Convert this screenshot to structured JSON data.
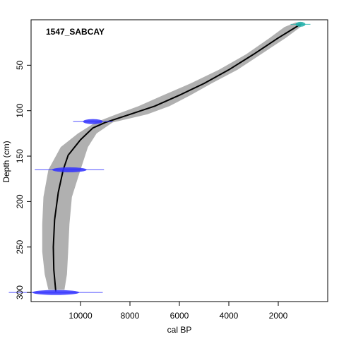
{
  "chart_data": {
    "type": "line",
    "title": "1547_SABCAY",
    "xlabel": "cal BP",
    "ylabel": "Depth (cm)",
    "xlim": [
      12000,
      0
    ],
    "ylim": [
      310,
      0
    ],
    "x_reversed": true,
    "y_reversed": true,
    "x_ticks": [
      10000,
      8000,
      6000,
      4000,
      2000
    ],
    "y_ticks": [
      50,
      100,
      150,
      200,
      250,
      300
    ],
    "grid": false,
    "series": [
      {
        "role": "age-depth-model-median",
        "color": "#000000",
        "points": [
          {
            "age": 1100,
            "depth": 5
          },
          {
            "age": 2000,
            "depth": 20
          },
          {
            "age": 3000,
            "depth": 38
          },
          {
            "age": 4000,
            "depth": 55
          },
          {
            "age": 5000,
            "depth": 70
          },
          {
            "age": 6000,
            "depth": 83
          },
          {
            "age": 7000,
            "depth": 95
          },
          {
            "age": 8000,
            "depth": 104
          },
          {
            "age": 9000,
            "depth": 113
          },
          {
            "age": 9500,
            "depth": 119
          },
          {
            "age": 10000,
            "depth": 132
          },
          {
            "age": 10500,
            "depth": 149
          },
          {
            "age": 10700,
            "depth": 165
          },
          {
            "age": 10900,
            "depth": 190
          },
          {
            "age": 11050,
            "depth": 220
          },
          {
            "age": 11100,
            "depth": 250
          },
          {
            "age": 11080,
            "depth": 275
          },
          {
            "age": 11000,
            "depth": 299
          }
        ]
      }
    ],
    "uncertainty_envelope": {
      "color": "#b0b0b0",
      "points": [
        {
          "depth": 3,
          "old": 1300,
          "young": 1000
        },
        {
          "depth": 8,
          "old": 1750,
          "young": 1100
        },
        {
          "depth": 20,
          "old": 2350,
          "young": 1700
        },
        {
          "depth": 38,
          "old": 3300,
          "young": 2700
        },
        {
          "depth": 55,
          "old": 4400,
          "young": 3650
        },
        {
          "depth": 70,
          "old": 5550,
          "young": 4700
        },
        {
          "depth": 83,
          "old": 6650,
          "young": 5550
        },
        {
          "depth": 95,
          "old": 7650,
          "young": 6400
        },
        {
          "depth": 104,
          "old": 8550,
          "young": 7300
        },
        {
          "depth": 113,
          "old": 9400,
          "young": 8700
        },
        {
          "depth": 125,
          "old": 10100,
          "young": 9350
        },
        {
          "depth": 140,
          "old": 10800,
          "young": 9700
        },
        {
          "depth": 165,
          "old": 11300,
          "young": 10000
        },
        {
          "depth": 195,
          "old": 11500,
          "young": 10350
        },
        {
          "depth": 225,
          "old": 11550,
          "young": 10450
        },
        {
          "depth": 255,
          "old": 11550,
          "young": 10500
        },
        {
          "depth": 280,
          "old": 11450,
          "young": 10550
        },
        {
          "depth": 297,
          "old": 11300,
          "young": 10650
        }
      ]
    },
    "dates": [
      {
        "depth": 5,
        "age": 1100,
        "error": 200,
        "color": "#20b2aa",
        "kind": "calendar"
      },
      {
        "depth": 112,
        "age": 9500,
        "error": 400,
        "color": "#3333ff",
        "kind": "radiocarbon"
      },
      {
        "depth": 165,
        "age": 10450,
        "error": 700,
        "color": "#3333ff",
        "kind": "radiocarbon"
      },
      {
        "depth": 300,
        "age": 11000,
        "error": 950,
        "color": "#3333ff",
        "kind": "radiocarbon"
      }
    ]
  }
}
